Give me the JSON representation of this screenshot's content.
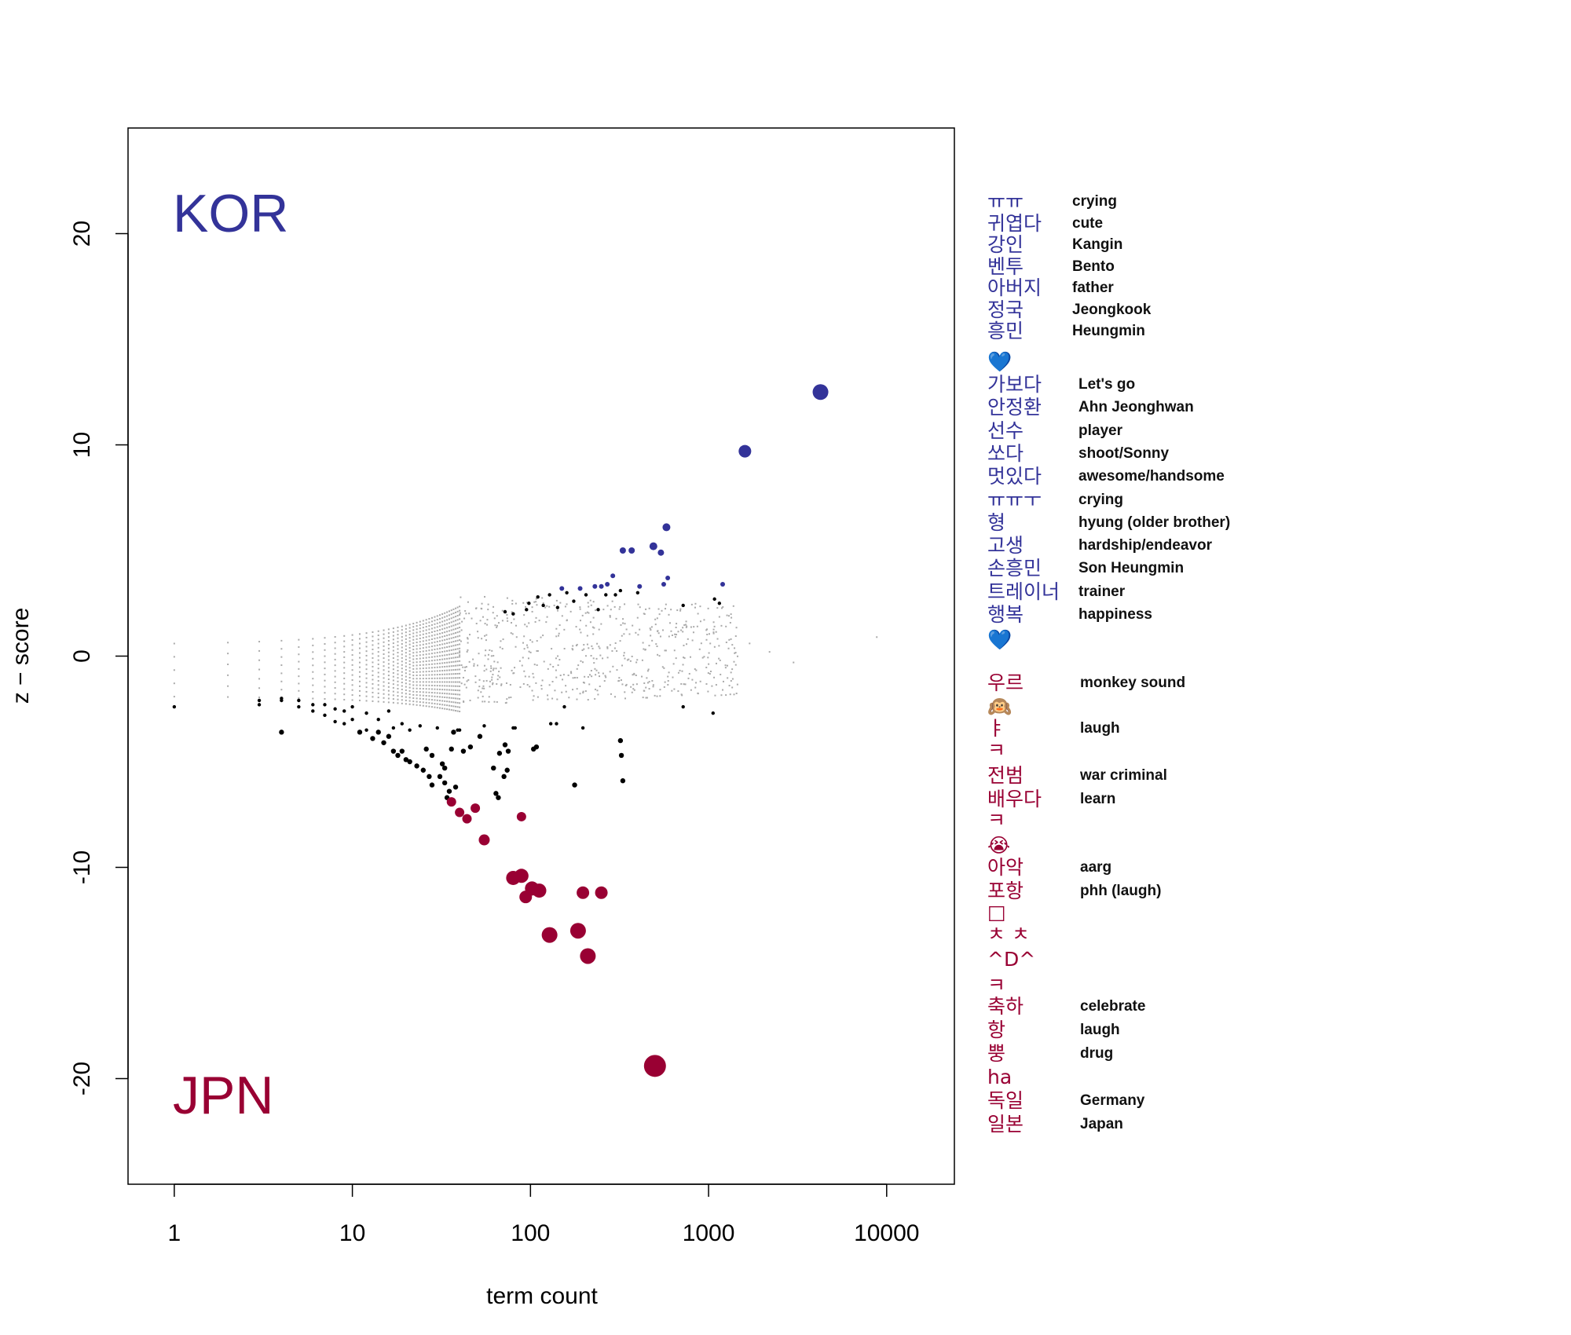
{
  "colors": {
    "kor": "#333399",
    "jpn": "#990033",
    "neutral": "#aaaaaa",
    "sig": "#000000"
  },
  "chart_data": {
    "type": "scatter",
    "xlabel": "term count",
    "ylabel": "z − score",
    "x_scale": "log10",
    "xlim": [
      0.55,
      24000
    ],
    "ylim": [
      -25,
      25
    ],
    "x_ticks": [
      1,
      10,
      100,
      1000,
      10000
    ],
    "x_tick_labels": [
      "1",
      "10",
      "100",
      "1000",
      "10000"
    ],
    "y_ticks": [
      -20,
      -10,
      0,
      10,
      20
    ],
    "y_tick_labels": [
      "-20",
      "-10",
      "0",
      "10",
      "20"
    ],
    "grid": false,
    "annotations": [
      {
        "text": "KOR",
        "color": "#333399",
        "x": 1.5,
        "y": 21
      },
      {
        "text": "JPN",
        "color": "#990033",
        "x": 1.5,
        "y": -20.8
      }
    ],
    "kor_points": [
      {
        "x": 4250,
        "y": 12.5,
        "r": 10
      },
      {
        "x": 1600,
        "y": 9.7,
        "r": 8
      },
      {
        "x": 580,
        "y": 6.1,
        "r": 5
      },
      {
        "x": 490,
        "y": 5.2,
        "r": 5
      },
      {
        "x": 540,
        "y": 4.9,
        "r": 4
      },
      {
        "x": 330,
        "y": 5.0,
        "r": 4
      },
      {
        "x": 370,
        "y": 5.0,
        "r": 4
      },
      {
        "x": 290,
        "y": 3.8,
        "r": 3
      },
      {
        "x": 590,
        "y": 3.7,
        "r": 3
      },
      {
        "x": 560,
        "y": 3.4,
        "r": 3
      },
      {
        "x": 1200,
        "y": 3.4,
        "r": 3
      },
      {
        "x": 410,
        "y": 3.3,
        "r": 3
      },
      {
        "x": 230,
        "y": 3.3,
        "r": 3
      },
      {
        "x": 250,
        "y": 3.3,
        "r": 3
      },
      {
        "x": 190,
        "y": 3.2,
        "r": 3
      },
      {
        "x": 150,
        "y": 3.2,
        "r": 3
      },
      {
        "x": 270,
        "y": 3.4,
        "r": 3
      }
    ],
    "jpn_points": [
      {
        "x": 500,
        "y": -19.4,
        "r": 14
      },
      {
        "x": 210,
        "y": -14.2,
        "r": 10
      },
      {
        "x": 185,
        "y": -13.0,
        "r": 10
      },
      {
        "x": 128,
        "y": -13.2,
        "r": 10
      },
      {
        "x": 112,
        "y": -11.1,
        "r": 9
      },
      {
        "x": 102,
        "y": -11.0,
        "r": 9
      },
      {
        "x": 94,
        "y": -11.4,
        "r": 8
      },
      {
        "x": 89,
        "y": -10.4,
        "r": 9
      },
      {
        "x": 80,
        "y": -10.5,
        "r": 9
      },
      {
        "x": 197,
        "y": -11.2,
        "r": 8
      },
      {
        "x": 250,
        "y": -11.2,
        "r": 8
      },
      {
        "x": 55,
        "y": -8.7,
        "r": 7
      },
      {
        "x": 89,
        "y": -7.6,
        "r": 6
      },
      {
        "x": 49,
        "y": -7.2,
        "r": 6
      },
      {
        "x": 44,
        "y": -7.7,
        "r": 6
      },
      {
        "x": 40,
        "y": -7.4,
        "r": 6
      },
      {
        "x": 36,
        "y": -6.9,
        "r": 6
      }
    ],
    "sig_points": [
      {
        "x": 1,
        "y": -2.4
      },
      {
        "x": 3,
        "y": -2.3
      },
      {
        "x": 3,
        "y": -2.1
      },
      {
        "x": 4,
        "y": -3.6
      },
      {
        "x": 4,
        "y": -2.1
      },
      {
        "x": 4,
        "y": -2.0
      },
      {
        "x": 5,
        "y": -2.4
      },
      {
        "x": 5,
        "y": -2.1
      },
      {
        "x": 6,
        "y": -2.6
      },
      {
        "x": 6,
        "y": -2.3
      },
      {
        "x": 7,
        "y": -2.8
      },
      {
        "x": 7,
        "y": -2.3
      },
      {
        "x": 8,
        "y": -3.1
      },
      {
        "x": 8,
        "y": -2.5
      },
      {
        "x": 9,
        "y": -3.2
      },
      {
        "x": 9,
        "y": -2.6
      },
      {
        "x": 10,
        "y": -3.0
      },
      {
        "x": 10,
        "y": -2.4
      },
      {
        "x": 11,
        "y": -3.6
      },
      {
        "x": 12,
        "y": -3.5
      },
      {
        "x": 12,
        "y": -2.7
      },
      {
        "x": 13,
        "y": -3.9
      },
      {
        "x": 14,
        "y": -3.6
      },
      {
        "x": 14,
        "y": -3.0
      },
      {
        "x": 15,
        "y": -4.1
      },
      {
        "x": 16,
        "y": -3.8
      },
      {
        "x": 16,
        "y": -2.6
      },
      {
        "x": 17,
        "y": -4.5
      },
      {
        "x": 17,
        "y": -3.4
      },
      {
        "x": 18,
        "y": -4.7
      },
      {
        "x": 19,
        "y": -4.5
      },
      {
        "x": 19,
        "y": -3.2
      },
      {
        "x": 20,
        "y": -4.9
      },
      {
        "x": 21,
        "y": -5.0
      },
      {
        "x": 21,
        "y": -3.5
      },
      {
        "x": 23,
        "y": -5.2
      },
      {
        "x": 24,
        "y": -3.3
      },
      {
        "x": 25,
        "y": -5.4
      },
      {
        "x": 26,
        "y": -4.4
      },
      {
        "x": 27,
        "y": -5.7
      },
      {
        "x": 28,
        "y": -4.7
      },
      {
        "x": 28,
        "y": -6.1
      },
      {
        "x": 30,
        "y": -3.4
      },
      {
        "x": 31,
        "y": -5.7
      },
      {
        "x": 32,
        "y": -5.1
      },
      {
        "x": 33,
        "y": -6.0
      },
      {
        "x": 33,
        "y": -5.3
      },
      {
        "x": 34,
        "y": -6.7
      },
      {
        "x": 35,
        "y": -6.4
      },
      {
        "x": 36,
        "y": -4.4
      },
      {
        "x": 37,
        "y": -3.6
      },
      {
        "x": 38,
        "y": -6.2
      },
      {
        "x": 39,
        "y": -3.5
      },
      {
        "x": 40,
        "y": -3.5
      },
      {
        "x": 42,
        "y": -4.5
      },
      {
        "x": 46,
        "y": -4.3
      },
      {
        "x": 52,
        "y": -3.8
      },
      {
        "x": 55,
        "y": -3.3
      },
      {
        "x": 62,
        "y": -5.3
      },
      {
        "x": 64,
        "y": -6.5
      },
      {
        "x": 66,
        "y": -6.7
      },
      {
        "x": 67,
        "y": -4.6
      },
      {
        "x": 71,
        "y": -5.7
      },
      {
        "x": 72,
        "y": -4.2
      },
      {
        "x": 74,
        "y": -5.4
      },
      {
        "x": 75,
        "y": -4.5
      },
      {
        "x": 80,
        "y": -3.4
      },
      {
        "x": 82,
        "y": -3.4
      },
      {
        "x": 104,
        "y": -4.4
      },
      {
        "x": 108,
        "y": -4.3
      },
      {
        "x": 130,
        "y": -3.2
      },
      {
        "x": 177,
        "y": -6.1
      },
      {
        "x": 197,
        "y": -3.4
      },
      {
        "x": 320,
        "y": -4.0
      },
      {
        "x": 324,
        "y": -4.7
      },
      {
        "x": 330,
        "y": -5.9
      },
      {
        "x": 140,
        "y": -3.2
      },
      {
        "x": 155,
        "y": -2.4
      },
      {
        "x": 720,
        "y": -2.4
      },
      {
        "x": 1060,
        "y": -2.7
      },
      {
        "x": 95,
        "y": 2.2
      },
      {
        "x": 98,
        "y": 2.5
      },
      {
        "x": 110,
        "y": 2.8
      },
      {
        "x": 118,
        "y": 2.4
      },
      {
        "x": 128,
        "y": 2.9
      },
      {
        "x": 142,
        "y": 2.3
      },
      {
        "x": 160,
        "y": 3.0
      },
      {
        "x": 175,
        "y": 2.6
      },
      {
        "x": 205,
        "y": 2.9
      },
      {
        "x": 240,
        "y": 2.2
      },
      {
        "x": 265,
        "y": 2.9
      },
      {
        "x": 300,
        "y": 2.9
      },
      {
        "x": 320,
        "y": 3.1
      },
      {
        "x": 400,
        "y": 3.0
      },
      {
        "x": 720,
        "y": 2.4
      },
      {
        "x": 1080,
        "y": 2.7
      },
      {
        "x": 1150,
        "y": 2.5
      },
      {
        "x": 72,
        "y": 2.1
      },
      {
        "x": 80,
        "y": 2.0
      }
    ]
  },
  "legend": {
    "kor_group_1": [
      {
        "term": "ㅠㅠ",
        "gloss": "crying"
      },
      {
        "term": "귀엽다",
        "gloss": "cute"
      },
      {
        "term": "강인",
        "gloss": "Kangin"
      },
      {
        "term": "벤투",
        "gloss": "Bento"
      },
      {
        "term": "아버지",
        "gloss": "father"
      },
      {
        "term": "정국",
        "gloss": "Jeongkook"
      },
      {
        "term": "흥민",
        "gloss": "Heungmin"
      }
    ],
    "kor_heart_1": "💙",
    "kor_group_2": [
      {
        "term": "가보다",
        "gloss": "Let's go"
      },
      {
        "term": "안정환",
        "gloss": "Ahn Jeonghwan"
      },
      {
        "term": "선수",
        "gloss": "player"
      },
      {
        "term": "쏘다",
        "gloss": "shoot/Sonny"
      },
      {
        "term": "멋있다",
        "gloss": "awesome/handsome"
      },
      {
        "term": "ㅠㅠㅜ",
        "gloss": "crying"
      },
      {
        "term": "형",
        "gloss": "hyung (older brother)"
      },
      {
        "term": "고생",
        "gloss": "hardship/endeavor"
      },
      {
        "term": "손흥민",
        "gloss": "Son Heungmin"
      },
      {
        "term": "트레이너",
        "gloss": "trainer"
      },
      {
        "term": "행복",
        "gloss": "happiness"
      }
    ],
    "kor_heart_2": "💙",
    "jpn_group": [
      {
        "term": "우르",
        "gloss": "monkey sound",
        "y": 870
      },
      {
        "term": "🙉",
        "gloss": "",
        "y": 900
      },
      {
        "term": "ㅑ",
        "gloss": "laugh",
        "y": 928
      },
      {
        "term": "ㅋ",
        "gloss": "",
        "y": 956
      },
      {
        "term": "전범",
        "gloss": "war criminal",
        "y": 988
      },
      {
        "term": "배우다",
        "gloss": "learn",
        "y": 1018
      },
      {
        "term": "ㅋ",
        "gloss": "",
        "y": 1045
      },
      {
        "term": "😭",
        "gloss": "",
        "y": 1077
      },
      {
        "term": "아악",
        "gloss": "aarg",
        "y": 1105
      },
      {
        "term": "포항",
        "gloss": "phh (laugh)",
        "y": 1135
      },
      {
        "term": "□",
        "gloss": "",
        "y": 1162
      },
      {
        "term": "ㅊ ㅊ",
        "gloss": "",
        "y": 1190
      },
      {
        "term": "^D^",
        "gloss": "",
        "y": 1222
      },
      {
        "term": "ㅋ",
        "gloss": "",
        "y": 1255
      },
      {
        "term": "축하",
        "gloss": "celebrate",
        "y": 1282
      },
      {
        "term": "항",
        "gloss": "laugh",
        "y": 1312
      },
      {
        "term": "뿡",
        "gloss": "drug",
        "y": 1342
      },
      {
        "term": "ha",
        "gloss": "",
        "y": 1372
      },
      {
        "term": "독일",
        "gloss": "Germany",
        "y": 1402
      },
      {
        "term": "일본",
        "gloss": "Japan",
        "y": 1432
      }
    ]
  }
}
